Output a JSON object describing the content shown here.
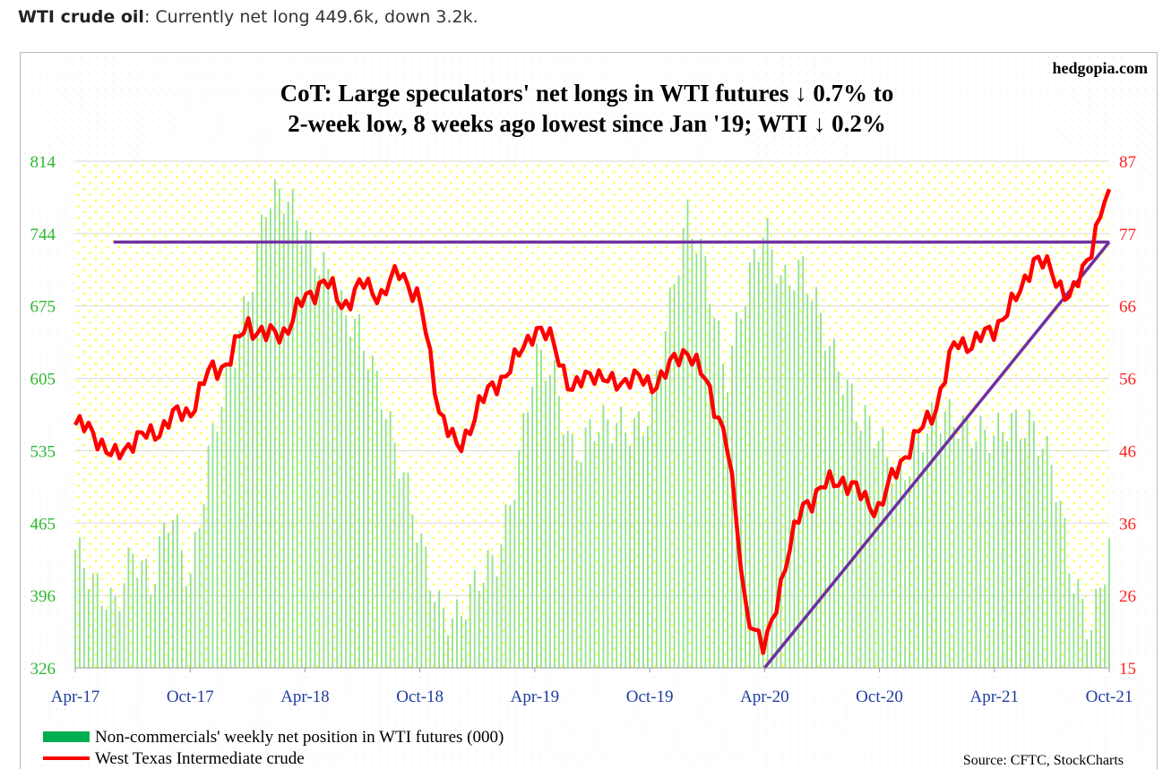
{
  "caption": {
    "label": "WTI crude oil",
    "text": ": Currently net long 449.6k, down 3.2k."
  },
  "chart_data": {
    "type": "bar+line",
    "brand": "hedgopia.com",
    "title_line1": "CoT: Large speculators' net longs in WTI futures ↓ 0.7% to",
    "title_line2": "2-week low, 8 weeks ago lowest since Jan '19; WTI ↓ 0.2%",
    "source": "Source: CFTC, StockCharts",
    "x_ticks": [
      "Apr-17",
      "Oct-17",
      "Apr-18",
      "Oct-18",
      "Apr-19",
      "Oct-19",
      "Apr-20",
      "Oct-20",
      "Apr-21",
      "Oct-21"
    ],
    "y_left": {
      "ticks": [
        814,
        744,
        675,
        605,
        535,
        465,
        396,
        326
      ],
      "ylim": [
        326,
        814
      ]
    },
    "y_right": {
      "ticks": [
        87,
        77,
        66,
        56,
        46,
        36,
        26,
        15
      ],
      "ylim": [
        15,
        87
      ]
    },
    "colors": {
      "bars": "#90e090",
      "line": "#ff0000",
      "trend": "#7030a0",
      "left_axis": "#2eb82e",
      "right_axis": "#ff2222",
      "x_axis": "#1f3c9e"
    },
    "legend": [
      {
        "label": "Non-commercials' weekly net position in WTI futures (000)",
        "color": "#00b050",
        "kind": "bar"
      },
      {
        "label": "West Texas Intermediate crude",
        "color": "#ff0000",
        "kind": "line"
      }
    ],
    "series": [
      {
        "name": "Non-commercials' weekly net position in WTI futures (000)",
        "kind": "bar",
        "axis": "left",
        "points": [
          [
            "2017-04",
            440
          ],
          [
            "2017-05",
            395
          ],
          [
            "2017-06",
            390
          ],
          [
            "2017-07",
            445
          ],
          [
            "2017-08",
            395
          ],
          [
            "2017-09",
            480
          ],
          [
            "2017-10",
            420
          ],
          [
            "2017-11",
            530
          ],
          [
            "2017-12",
            600
          ],
          [
            "2018-01",
            690
          ],
          [
            "2018-02",
            780
          ],
          [
            "2018-03",
            770
          ],
          [
            "2018-04",
            745
          ],
          [
            "2018-05",
            720
          ],
          [
            "2018-06",
            660
          ],
          [
            "2018-07",
            640
          ],
          [
            "2018-08",
            600
          ],
          [
            "2018-09",
            520
          ],
          [
            "2018-10",
            440
          ],
          [
            "2018-11",
            390
          ],
          [
            "2018-12",
            380
          ],
          [
            "2019-01",
            400
          ],
          [
            "2019-02",
            430
          ],
          [
            "2019-03",
            520
          ],
          [
            "2019-04",
            620
          ],
          [
            "2019-05",
            600
          ],
          [
            "2019-06",
            540
          ],
          [
            "2019-07",
            560
          ],
          [
            "2019-08",
            550
          ],
          [
            "2019-09",
            560
          ],
          [
            "2019-10",
            580
          ],
          [
            "2019-11",
            660
          ],
          [
            "2019-12",
            760
          ],
          [
            "2020-01",
            720
          ],
          [
            "2020-02",
            600
          ],
          [
            "2020-03",
            680
          ],
          [
            "2020-04",
            760
          ],
          [
            "2020-05",
            700
          ],
          [
            "2020-06",
            700
          ],
          [
            "2020-07",
            660
          ],
          [
            "2020-08",
            620
          ],
          [
            "2020-09",
            560
          ],
          [
            "2020-10",
            540
          ],
          [
            "2020-11",
            520
          ],
          [
            "2020-12",
            540
          ],
          [
            "2021-01",
            560
          ],
          [
            "2021-02",
            570
          ],
          [
            "2021-03",
            560
          ],
          [
            "2021-04",
            540
          ],
          [
            "2021-05",
            560
          ],
          [
            "2021-06",
            570
          ],
          [
            "2021-07",
            520
          ],
          [
            "2021-08",
            410
          ],
          [
            "2021-09",
            370
          ],
          [
            "2021-10",
            449.6
          ]
        ]
      },
      {
        "name": "West Texas Intermediate crude",
        "kind": "line",
        "axis": "right",
        "points": [
          [
            "2017-04",
            49.5
          ],
          [
            "2017-05",
            48.5
          ],
          [
            "2017-06",
            44.5
          ],
          [
            "2017-07",
            47.5
          ],
          [
            "2017-08",
            48
          ],
          [
            "2017-09",
            50.5
          ],
          [
            "2017-10",
            51.5
          ],
          [
            "2017-11",
            57
          ],
          [
            "2017-12",
            58.5
          ],
          [
            "2018-01",
            64
          ],
          [
            "2018-02",
            62
          ],
          [
            "2018-03",
            63
          ],
          [
            "2018-04",
            67.5
          ],
          [
            "2018-05",
            70
          ],
          [
            "2018-06",
            66.5
          ],
          [
            "2018-07",
            69.5
          ],
          [
            "2018-08",
            68
          ],
          [
            "2018-09",
            71.5
          ],
          [
            "2018-10",
            67
          ],
          [
            "2018-11",
            52
          ],
          [
            "2018-12",
            45.5
          ],
          [
            "2019-01",
            52
          ],
          [
            "2019-02",
            55.5
          ],
          [
            "2019-03",
            58.5
          ],
          [
            "2019-04",
            63.5
          ],
          [
            "2019-05",
            61
          ],
          [
            "2019-06",
            54
          ],
          [
            "2019-07",
            57.5
          ],
          [
            "2019-08",
            55
          ],
          [
            "2019-09",
            56.5
          ],
          [
            "2019-10",
            55
          ],
          [
            "2019-11",
            57.5
          ],
          [
            "2019-12",
            60.5
          ],
          [
            "2020-01",
            55
          ],
          [
            "2020-02",
            48
          ],
          [
            "2020-03",
            24
          ],
          [
            "2020-04",
            17
          ],
          [
            "2020-05",
            29
          ],
          [
            "2020-06",
            38
          ],
          [
            "2020-07",
            40.5
          ],
          [
            "2020-08",
            42
          ],
          [
            "2020-09",
            39.5
          ],
          [
            "2020-10",
            37.5
          ],
          [
            "2020-11",
            44
          ],
          [
            "2020-12",
            48
          ],
          [
            "2021-01",
            52.5
          ],
          [
            "2021-02",
            61.5
          ],
          [
            "2021-03",
            61
          ],
          [
            "2021-04",
            63.5
          ],
          [
            "2021-05",
            66.5
          ],
          [
            "2021-06",
            73
          ],
          [
            "2021-07",
            71.5
          ],
          [
            "2021-08",
            67
          ],
          [
            "2021-09",
            74.5
          ],
          [
            "2021-10",
            83
          ]
        ]
      }
    ],
    "trendlines": [
      {
        "kind": "horizontal",
        "axis": "right",
        "from": "2017-06",
        "to": "2021-10",
        "y": [
          75.5,
          75.5
        ]
      },
      {
        "kind": "diagonal",
        "axis": "right",
        "from": "2020-04",
        "to": "2021-10",
        "y": [
          15,
          75.5
        ]
      }
    ]
  }
}
